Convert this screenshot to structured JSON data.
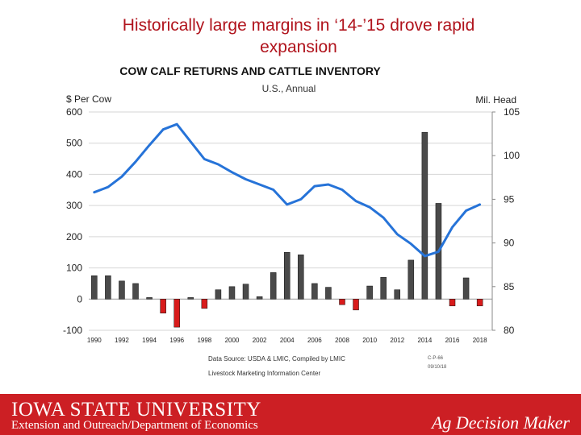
{
  "slide": {
    "title_line1": "Historically large margins in ‘14-’15 drove rapid",
    "title_line2": "expansion"
  },
  "chart_data": {
    "type": "bar+line",
    "title": "COW CALF RETURNS AND CATTLE INVENTORY",
    "subtitle": "U.S., Annual",
    "left_axis_label": "$ Per Cow",
    "right_axis_label": "Mil. Head",
    "left_ylim": [
      -100,
      600
    ],
    "left_ticks": [
      600,
      500,
      400,
      300,
      200,
      100,
      0,
      -100
    ],
    "right_ylim": [
      80,
      105
    ],
    "right_ticks": [
      105,
      100,
      95,
      90,
      85,
      80
    ],
    "x_ticks": [
      "1990",
      "1992",
      "1994",
      "1996",
      "1998",
      "2000",
      "2002",
      "2004",
      "2006",
      "2008",
      "2010",
      "2012",
      "2014",
      "2016",
      "2018"
    ],
    "years": [
      1990,
      1991,
      1992,
      1993,
      1994,
      1995,
      1996,
      1997,
      1998,
      1999,
      2000,
      2001,
      2002,
      2003,
      2004,
      2005,
      2006,
      2007,
      2008,
      2009,
      2010,
      2011,
      2012,
      2013,
      2014,
      2015,
      2016,
      2017,
      2018
    ],
    "returns": [
      75,
      75,
      58,
      50,
      5,
      -45,
      -90,
      5,
      -30,
      30,
      40,
      48,
      8,
      85,
      150,
      142,
      50,
      38,
      -18,
      -35,
      42,
      70,
      30,
      125,
      535,
      307,
      -22,
      68,
      -22
    ],
    "inventory_years": [
      1990,
      1991,
      1992,
      1993,
      1994,
      1995,
      1996,
      1997,
      1998,
      1999,
      2000,
      2001,
      2002,
      2003,
      2004,
      2005,
      2006,
      2007,
      2008,
      2009,
      2010,
      2011,
      2012,
      2013,
      2014,
      2015,
      2016,
      2017,
      2018
    ],
    "inventory": [
      95.8,
      96.4,
      97.6,
      99.3,
      101.2,
      103.0,
      103.6,
      101.6,
      99.6,
      99.0,
      98.1,
      97.3,
      96.7,
      96.1,
      94.4,
      95.0,
      96.5,
      96.7,
      96.1,
      94.8,
      94.1,
      92.9,
      91.0,
      89.9,
      88.5,
      89.0,
      91.8,
      93.7,
      94.4
    ],
    "source_line1": "Data Source: USDA & LMIC, Compiled by LMIC",
    "source_line2": "Livestock Marketing Information Center",
    "stamp_line1": "C-P-66",
    "stamp_line2": "09/10/18",
    "colors": {
      "line": "#2673d8",
      "bar_positive": "#4a4a4a",
      "bar_negative": "#d81b1b",
      "grid": "#d6d6d6"
    }
  },
  "footer": {
    "university": "IOWA STATE UNIVERSITY",
    "department": "Extension and Outreach/Department of Economics",
    "brand": "Ag Decision Maker"
  }
}
